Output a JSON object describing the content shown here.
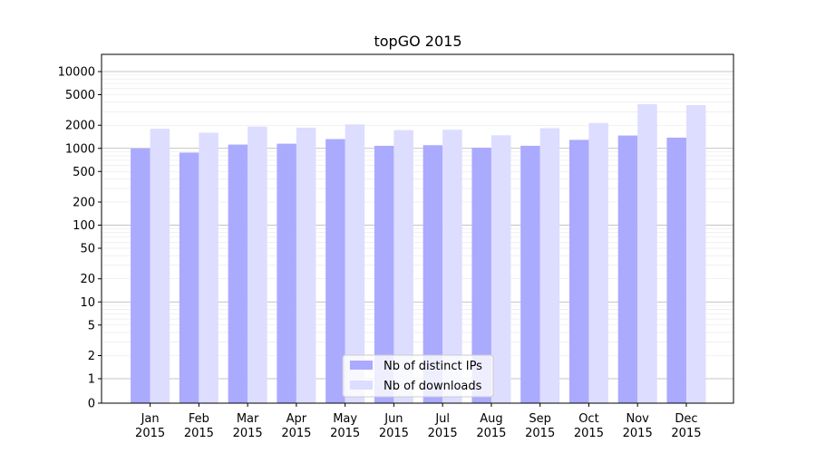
{
  "chart_data": {
    "type": "bar",
    "title": "topGO 2015",
    "xlabel": "",
    "ylabel": "",
    "yscale": "symlog",
    "ylim": [
      0,
      15000
    ],
    "categories": [
      "Jan\n2015",
      "Feb\n2015",
      "Mar\n2015",
      "Apr\n2015",
      "May\n2015",
      "Jun\n2015",
      "Jul\n2015",
      "Aug\n2015",
      "Sep\n2015",
      "Oct\n2015",
      "Nov\n2015",
      "Dec\n2015"
    ],
    "yticks": [
      {
        "value": 0,
        "label": "0"
      },
      {
        "value": 1,
        "label": "1"
      },
      {
        "value": 2,
        "label": "2"
      },
      {
        "value": 5,
        "label": "5"
      },
      {
        "value": 10,
        "label": "10"
      },
      {
        "value": 20,
        "label": "20"
      },
      {
        "value": 50,
        "label": "50"
      },
      {
        "value": 100,
        "label": "100"
      },
      {
        "value": 200,
        "label": "200"
      },
      {
        "value": 500,
        "label": "500"
      },
      {
        "value": 1000,
        "label": "1000"
      },
      {
        "value": 2000,
        "label": "2000"
      },
      {
        "value": 5000,
        "label": "5000"
      },
      {
        "value": 10000,
        "label": "10000"
      }
    ],
    "grid": true,
    "legend": "lower-center",
    "series": [
      {
        "name": "Nb of distinct IPs",
        "color": "#aaaaff",
        "values": [
          1000,
          880,
          1120,
          1150,
          1320,
          1080,
          1100,
          1020,
          1080,
          1290,
          1470,
          1380
        ]
      },
      {
        "name": "Nb of downloads",
        "color": "#ddddff",
        "values": [
          1800,
          1600,
          1920,
          1860,
          2050,
          1730,
          1750,
          1480,
          1830,
          2140,
          3760,
          3650
        ]
      }
    ]
  }
}
